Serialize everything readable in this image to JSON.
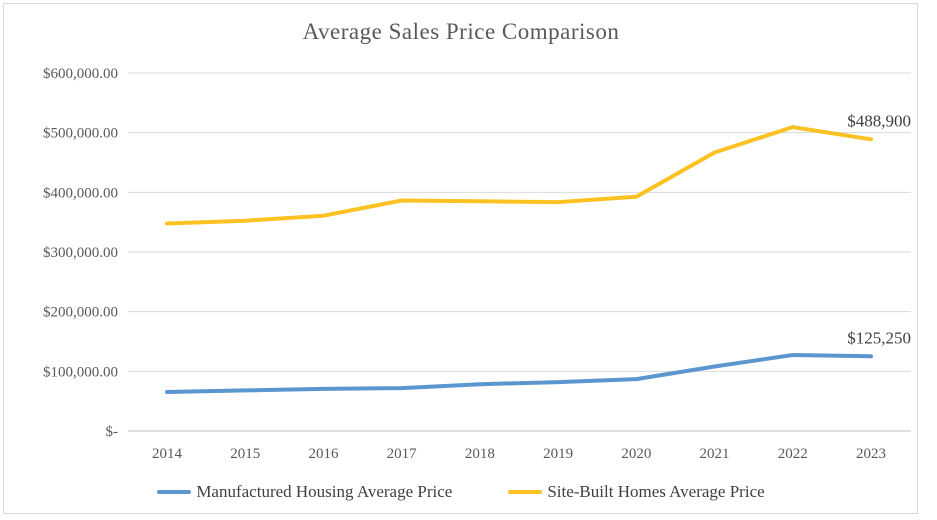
{
  "window": {
    "background": "#FFFFFF",
    "frame_border_color": "#D9D9D9"
  },
  "chart_data": {
    "type": "line",
    "title": "Average Sales Price Comparison",
    "categories": [
      "2014",
      "2015",
      "2016",
      "2017",
      "2018",
      "2019",
      "2020",
      "2021",
      "2022",
      "2023"
    ],
    "series": [
      {
        "name": "Manufactured Housing Average Price",
        "color": "#5B97CE",
        "values": [
          65300,
          68000,
          70600,
          71900,
          78500,
          81900,
          87000,
          108100,
          127300,
          125250
        ],
        "end_label": "$125,250"
      },
      {
        "name": "Site-Built Homes Average Price",
        "color": "#FCC224",
        "values": [
          347700,
          352500,
          360900,
          386300,
          385000,
          383700,
          392600,
          466800,
          509400,
          488900
        ],
        "end_label": "$488,900"
      }
    ],
    "xlabel": "",
    "ylabel": "",
    "y_axis": {
      "min": 0,
      "max": 600000,
      "step": 100000,
      "tick_labels": [
        "$600,000.00",
        "$500,000.00",
        "$400,000.00",
        "$300,000.00",
        "$200,000.00",
        "$100,000.00",
        "$-"
      ]
    },
    "x_axis": {
      "tick_labels": [
        "2014",
        "2015",
        "2016",
        "2017",
        "2018",
        "2019",
        "2020",
        "2021",
        "2022",
        "2023"
      ]
    },
    "grid": true,
    "legend_position": "bottom",
    "colors": {
      "gridline": "#D9D9D9",
      "zero_line": "#BFBFBF",
      "title_text": "#595959",
      "axis_text": "#595959",
      "label_text": "#404040"
    }
  }
}
